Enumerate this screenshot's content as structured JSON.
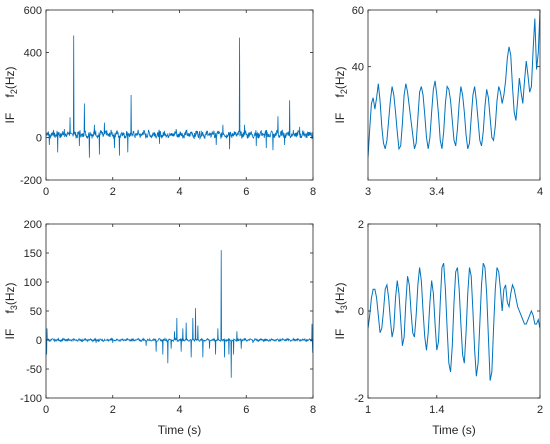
{
  "chart_data": [
    {
      "id": "p1",
      "type": "line",
      "xlim": [
        0,
        8
      ],
      "ylim": [
        -200,
        600
      ],
      "xticks": [
        "0",
        "2",
        "4",
        "6",
        "8"
      ],
      "yticks": [
        "-200",
        "0",
        "400",
        "600"
      ],
      "ytick_values": [
        -200,
        0,
        400,
        600
      ],
      "xlabel": "",
      "ylabel_prefix": "IF",
      "ylabel_var": "f",
      "ylabel_sub": "2",
      "ylabel_unit": "(Hz)",
      "baseline": 15,
      "ripple_amp": 8,
      "ripple_period": 0.16,
      "noise_amp": 14,
      "spikes": [
        [
          0.1,
          -35
        ],
        [
          0.35,
          -70
        ],
        [
          0.55,
          40
        ],
        [
          0.72,
          95
        ],
        [
          0.83,
          480
        ],
        [
          1.0,
          -40
        ],
        [
          1.15,
          160
        ],
        [
          1.3,
          -95
        ],
        [
          1.45,
          60
        ],
        [
          1.6,
          -80
        ],
        [
          1.75,
          70
        ],
        [
          2.05,
          -50
        ],
        [
          2.2,
          -85
        ],
        [
          2.45,
          -70
        ],
        [
          2.55,
          200
        ],
        [
          2.9,
          25
        ],
        [
          3.4,
          -30
        ],
        [
          3.9,
          40
        ],
        [
          4.6,
          30
        ],
        [
          5.1,
          -35
        ],
        [
          5.3,
          60
        ],
        [
          5.5,
          -55
        ],
        [
          5.8,
          470
        ],
        [
          5.95,
          60
        ],
        [
          6.3,
          -40
        ],
        [
          6.6,
          -50
        ],
        [
          6.8,
          -60
        ],
        [
          6.95,
          100
        ],
        [
          7.15,
          -35
        ],
        [
          7.3,
          175
        ],
        [
          7.6,
          50
        ]
      ]
    },
    {
      "id": "p2",
      "type": "line",
      "xlim": [
        3,
        4
      ],
      "ylim": [
        0,
        60
      ],
      "xticks": [
        "3",
        "3.4",
        "4"
      ],
      "xtick_values": [
        3,
        3.4,
        4
      ],
      "yticks": [
        "40",
        "60"
      ],
      "ytick_values": [
        40,
        60
      ],
      "xlabel": "",
      "ylabel_prefix": "IF",
      "ylabel_var": "f",
      "ylabel_sub": "2",
      "ylabel_unit": "(Hz)",
      "x": [
        3.0,
        3.01,
        3.02,
        3.03,
        3.04,
        3.05,
        3.06,
        3.07,
        3.08,
        3.09,
        3.1,
        3.11,
        3.12,
        3.13,
        3.14,
        3.15,
        3.16,
        3.17,
        3.18,
        3.19,
        3.2,
        3.21,
        3.22,
        3.23,
        3.24,
        3.25,
        3.26,
        3.27,
        3.28,
        3.29,
        3.3,
        3.31,
        3.32,
        3.33,
        3.34,
        3.35,
        3.36,
        3.37,
        3.38,
        3.39,
        3.4,
        3.41,
        3.42,
        3.43,
        3.44,
        3.45,
        3.46,
        3.47,
        3.48,
        3.49,
        3.5,
        3.51,
        3.52,
        3.53,
        3.54,
        3.55,
        3.56,
        3.57,
        3.58,
        3.59,
        3.6,
        3.61,
        3.62,
        3.63,
        3.64,
        3.65,
        3.66,
        3.67,
        3.68,
        3.69,
        3.7,
        3.71,
        3.72,
        3.73,
        3.74,
        3.75,
        3.76,
        3.77,
        3.78,
        3.79,
        3.8,
        3.81,
        3.82,
        3.83,
        3.84,
        3.85,
        3.86,
        3.87,
        3.88,
        3.89,
        3.9,
        3.91,
        3.92,
        3.93,
        3.94,
        3.95,
        3.96,
        3.97,
        3.98,
        3.99,
        4.0
      ],
      "y": [
        8,
        18,
        27,
        29,
        25,
        29,
        34,
        28,
        19,
        13,
        11,
        14,
        21,
        28,
        33,
        30,
        24,
        17,
        11,
        12,
        20,
        30,
        34,
        31,
        26,
        21,
        16,
        11,
        13,
        22,
        31,
        33,
        30,
        23,
        15,
        11,
        15,
        24,
        32,
        35,
        30,
        23,
        14,
        11,
        17,
        27,
        33,
        32,
        28,
        21,
        14,
        12,
        18,
        27,
        33,
        30,
        24,
        16,
        11,
        13,
        22,
        30,
        33,
        28,
        21,
        14,
        12,
        17,
        26,
        32,
        29,
        22,
        15,
        14,
        19,
        28,
        33,
        31,
        27,
        30,
        35,
        43,
        47,
        44,
        33,
        24,
        21,
        28,
        36,
        31,
        27,
        35,
        42,
        37,
        31,
        33,
        46,
        57,
        39,
        45,
        60
      ]
    },
    {
      "id": "p3",
      "type": "line",
      "xlim": [
        0,
        8
      ],
      "ylim": [
        -100,
        200
      ],
      "xticks": [
        "0",
        "2",
        "4",
        "6",
        "8"
      ],
      "yticks": [
        "-100",
        "-50",
        "0",
        "50",
        "100",
        "150",
        "200"
      ],
      "ytick_values": [
        -100,
        -50,
        0,
        50,
        100,
        150,
        200
      ],
      "xlabel": "Time (s)",
      "ylabel_prefix": "IF",
      "ylabel_var": "f",
      "ylabel_sub": "3",
      "ylabel_unit": "(Hz)",
      "baseline": 0,
      "ripple_amp": 1,
      "ripple_period": 0.16,
      "noise_amp": 1.5,
      "spikes": [
        [
          0.02,
          -25
        ],
        [
          0.03,
          20
        ],
        [
          1.5,
          -5
        ],
        [
          2.0,
          -5
        ],
        [
          3.0,
          -10
        ],
        [
          3.3,
          -20
        ],
        [
          3.5,
          -25
        ],
        [
          3.65,
          -40
        ],
        [
          3.75,
          -15
        ],
        [
          3.85,
          15
        ],
        [
          3.92,
          38
        ],
        [
          4.05,
          -20
        ],
        [
          4.1,
          20
        ],
        [
          4.2,
          30
        ],
        [
          4.35,
          -30
        ],
        [
          4.4,
          38
        ],
        [
          4.48,
          55
        ],
        [
          4.55,
          25
        ],
        [
          4.7,
          -30
        ],
        [
          4.9,
          -15
        ],
        [
          5.08,
          -25
        ],
        [
          5.15,
          20
        ],
        [
          5.25,
          155
        ],
        [
          5.35,
          -30
        ],
        [
          5.48,
          -25
        ],
        [
          5.55,
          -65
        ],
        [
          5.62,
          -25
        ],
        [
          5.72,
          15
        ],
        [
          5.85,
          -15
        ],
        [
          6.2,
          -5
        ],
        [
          7.97,
          28
        ],
        [
          7.99,
          -22
        ]
      ]
    },
    {
      "id": "p4",
      "type": "line",
      "xlim": [
        1,
        2
      ],
      "ylim": [
        -2,
        2
      ],
      "xticks": [
        "1",
        "1.4",
        "2"
      ],
      "xtick_values": [
        1,
        1.4,
        2
      ],
      "yticks": [
        "-2",
        "0",
        "2"
      ],
      "ytick_values": [
        -2,
        0,
        2
      ],
      "xlabel": "Time (s)",
      "ylabel_prefix": "IF",
      "ylabel_var": "f",
      "ylabel_sub": "3",
      "ylabel_unit": "(Hz)",
      "x": [
        1.0,
        1.01,
        1.02,
        1.03,
        1.04,
        1.05,
        1.06,
        1.07,
        1.08,
        1.09,
        1.1,
        1.11,
        1.12,
        1.13,
        1.14,
        1.15,
        1.16,
        1.17,
        1.18,
        1.19,
        1.2,
        1.21,
        1.22,
        1.23,
        1.24,
        1.25,
        1.26,
        1.27,
        1.28,
        1.29,
        1.3,
        1.31,
        1.32,
        1.33,
        1.34,
        1.35,
        1.36,
        1.37,
        1.38,
        1.39,
        1.4,
        1.41,
        1.42,
        1.43,
        1.44,
        1.45,
        1.46,
        1.47,
        1.48,
        1.49,
        1.5,
        1.51,
        1.52,
        1.53,
        1.54,
        1.55,
        1.56,
        1.57,
        1.58,
        1.59,
        1.6,
        1.61,
        1.62,
        1.63,
        1.64,
        1.65,
        1.66,
        1.67,
        1.68,
        1.69,
        1.7,
        1.71,
        1.72,
        1.73,
        1.74,
        1.75,
        1.76,
        1.77,
        1.78,
        1.79,
        1.8,
        1.81,
        1.82,
        1.83,
        1.84,
        1.85,
        1.86,
        1.87,
        1.88,
        1.89,
        1.9,
        1.91,
        1.92,
        1.93,
        1.94,
        1.95,
        1.96,
        1.97,
        1.98,
        1.99,
        2.0
      ],
      "y": [
        -0.4,
        -0.1,
        0.3,
        0.5,
        0.5,
        0.3,
        -0.1,
        -0.5,
        -0.4,
        0.0,
        0.5,
        0.6,
        0.3,
        -0.2,
        -0.6,
        -0.4,
        0.3,
        0.7,
        0.4,
        -0.2,
        -0.8,
        -0.6,
        0.2,
        0.8,
        0.6,
        0.0,
        -0.5,
        -0.6,
        -0.1,
        0.6,
        1.0,
        0.7,
        0.0,
        -0.6,
        -0.9,
        -0.5,
        0.2,
        0.7,
        0.4,
        -0.3,
        -0.9,
        -0.7,
        0.2,
        1.0,
        1.1,
        0.5,
        -0.4,
        -1.2,
        -1.4,
        -0.8,
        0.2,
        0.9,
        1.0,
        0.5,
        -0.3,
        -1.0,
        -1.2,
        -0.5,
        0.4,
        1.0,
        0.8,
        0.0,
        -0.9,
        -1.5,
        -1.2,
        -0.3,
        0.6,
        1.1,
        1.0,
        0.4,
        -0.6,
        -1.6,
        -1.4,
        -0.4,
        0.5,
        1.0,
        0.9,
        0.5,
        0.0,
        0.5,
        0.6,
        0.2,
        0.1,
        0.4,
        0.6,
        0.5,
        0.3,
        0.1,
        0.0,
        -0.1,
        -0.2,
        -0.3,
        -0.3,
        -0.2,
        -0.1,
        0.0,
        -0.1,
        -0.3,
        -0.3,
        -0.2,
        -0.4
      ]
    }
  ],
  "colors": {
    "line": "#0072BD",
    "axis": "#262626"
  }
}
